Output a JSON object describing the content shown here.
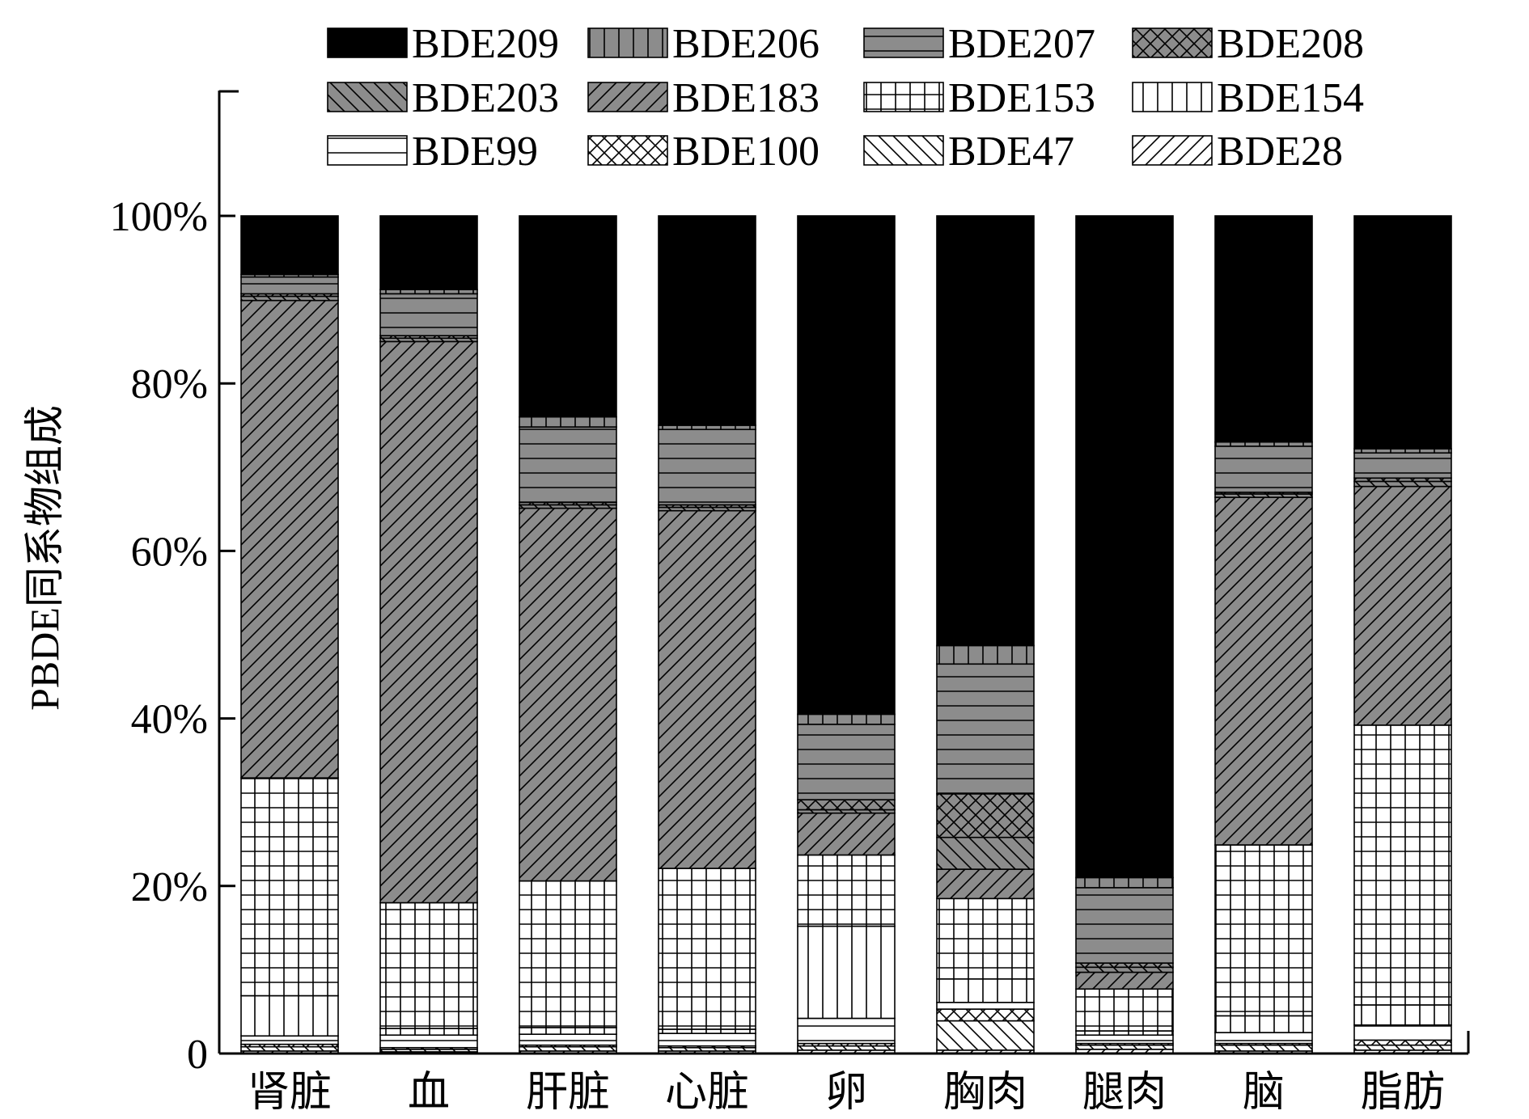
{
  "chart_data": {
    "type": "bar",
    "stacked": true,
    "normalized": true,
    "title": "",
    "xlabel": "",
    "ylabel": "PBDE同系物组成",
    "ylim": [
      0,
      100
    ],
    "yticks": [
      "0",
      "20%",
      "40%",
      "60%",
      "80%",
      "100%"
    ],
    "ytick_values": [
      0,
      20,
      40,
      60,
      80,
      100
    ],
    "grid": false,
    "legend_position": "top",
    "categories": [
      "肾脏",
      "血",
      "肝脏",
      "心脏",
      "卵",
      "胸肉",
      "腿肉",
      "脑",
      "脂肪"
    ],
    "series": [
      {
        "name": "BDE28",
        "pattern": "diag-fwd",
        "fill": "#ffffff",
        "values": [
          0.3,
          0.2,
          0.3,
          0.3,
          0.4,
          0.4,
          0.5,
          0.3,
          0.4
        ]
      },
      {
        "name": "BDE47",
        "pattern": "diag-back",
        "fill": "#ffffff",
        "values": [
          0.5,
          0.3,
          0.5,
          0.4,
          0.5,
          3.5,
          0.5,
          0.7,
          0.6
        ]
      },
      {
        "name": "BDE100",
        "pattern": "crosshatch",
        "fill": "#ffffff",
        "values": [
          0.3,
          0.2,
          0.2,
          0.2,
          0.3,
          1.4,
          0.2,
          0.2,
          0.6
        ]
      },
      {
        "name": "BDE99",
        "pattern": "horizontal",
        "fill": "#ffffff",
        "values": [
          1.0,
          1.5,
          1.3,
          1.5,
          3.0,
          0.8,
          1.0,
          1.3,
          1.8
        ]
      },
      {
        "name": "BDE154",
        "pattern": "vertical",
        "fill": "#ffffff",
        "values": [
          4.8,
          0.8,
          0.8,
          0.5,
          11.0,
          2.8,
          0.5,
          2.0,
          2.4
        ]
      },
      {
        "name": "BDE153",
        "pattern": "grid",
        "fill": "#ffffff",
        "values": [
          26.0,
          15.0,
          17.5,
          19.2,
          8.5,
          9.6,
          5.0,
          20.4,
          33.4
        ]
      },
      {
        "name": "BDE183",
        "pattern": "diag-fwd",
        "fill": "#8c8c8c",
        "values": [
          57.0,
          67.0,
          44.5,
          42.7,
          5.0,
          3.5,
          2.0,
          41.5,
          28.5
        ]
      },
      {
        "name": "BDE203",
        "pattern": "diag-back",
        "fill": "#8c8c8c",
        "values": [
          0.5,
          0.4,
          0.4,
          0.4,
          0.4,
          3.8,
          0.6,
          0.4,
          0.6
        ]
      },
      {
        "name": "BDE208",
        "pattern": "crosshatch",
        "fill": "#8c8c8c",
        "values": [
          0.3,
          0.3,
          0.3,
          0.3,
          1.2,
          5.2,
          0.5,
          0.2,
          0.4
        ]
      },
      {
        "name": "BDE207",
        "pattern": "horizontal",
        "fill": "#8c8c8c",
        "values": [
          2.0,
          5.0,
          9.0,
          9.0,
          9.0,
          15.5,
          9.0,
          5.5,
          3.0
        ]
      },
      {
        "name": "BDE206",
        "pattern": "vertical",
        "fill": "#8c8c8c",
        "values": [
          0.3,
          0.5,
          1.2,
          0.5,
          1.2,
          2.2,
          1.2,
          0.5,
          0.5
        ]
      },
      {
        "name": "BDE209",
        "pattern": "solid",
        "fill": "#000000",
        "values": [
          7.0,
          8.8,
          24.0,
          25.0,
          59.5,
          51.3,
          79.0,
          27.0,
          27.8
        ]
      }
    ],
    "legend_order": [
      "BDE209",
      "BDE206",
      "BDE207",
      "BDE208",
      "BDE203",
      "BDE183",
      "BDE153",
      "BDE154",
      "BDE99",
      "BDE100",
      "BDE47",
      "BDE28"
    ]
  }
}
